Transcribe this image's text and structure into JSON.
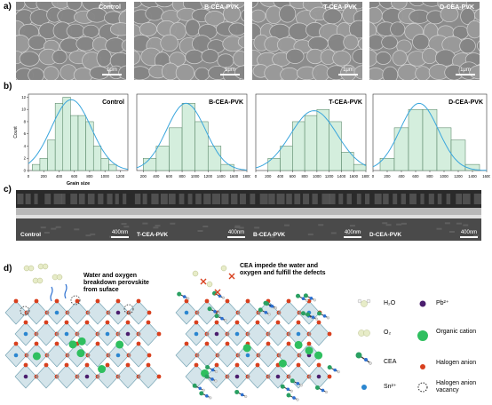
{
  "panels": {
    "a": "a)",
    "b": "b)",
    "c": "c)",
    "d": "d)"
  },
  "sem": [
    {
      "label": "Control",
      "scale": "1μm"
    },
    {
      "label": "B-CEA-PVK",
      "scale": "1μm"
    },
    {
      "label": "T-CEA-PVK",
      "scale": "1μm"
    },
    {
      "label": "D-CEA-PVK",
      "scale": "1μm"
    }
  ],
  "chart_data": [
    {
      "type": "bar",
      "title": "Control",
      "xlabel": "Grain size",
      "ylabel": "Count",
      "x": [
        100,
        200,
        300,
        400,
        500,
        600,
        700,
        800,
        900,
        1000,
        1100
      ],
      "values": [
        1,
        2,
        5,
        11,
        12,
        9,
        9,
        8,
        4,
        2,
        1
      ],
      "xticks": [
        "0",
        "200",
        "400",
        "600",
        "800",
        "1000",
        "1200"
      ],
      "yticks": [
        "0",
        "2",
        "4",
        "6",
        "8",
        "10",
        "12"
      ],
      "xlim": [
        0,
        1300
      ],
      "ylim": [
        0,
        12.5
      ],
      "fit": "gaussian",
      "fit_mu": 560,
      "fit_sigma": 260,
      "fit_peak": 11.6
    },
    {
      "type": "bar",
      "title": "B-CEA-PVK",
      "x": [
        300,
        500,
        700,
        900,
        1100,
        1300,
        1500
      ],
      "values": [
        2,
        4,
        7,
        11,
        8,
        4,
        1
      ],
      "xticks": [
        "200",
        "400",
        "600",
        "800",
        "1000",
        "1200",
        "1400",
        "1600",
        "1800"
      ],
      "xlim": [
        100,
        1800
      ],
      "ylim": [
        0,
        12.5
      ],
      "fit": "gaussian",
      "fit_mu": 860,
      "fit_sigma": 300,
      "fit_peak": 11
    },
    {
      "type": "bar",
      "title": "T-CEA-PVK",
      "x": [
        300,
        500,
        700,
        900,
        1100,
        1300,
        1500,
        1700
      ],
      "values": [
        2,
        4,
        8,
        9,
        10,
        8,
        3,
        1
      ],
      "xticks": [
        "0",
        "200",
        "400",
        "600",
        "800",
        "1000",
        "1200",
        "1400",
        "1600",
        "1800"
      ],
      "xlim": [
        0,
        1800
      ],
      "ylim": [
        0,
        12.5
      ],
      "fit": "gaussian",
      "fit_mu": 950,
      "fit_sigma": 380,
      "fit_peak": 9.8
    },
    {
      "type": "bar",
      "title": "D-CEA-PVK",
      "x": [
        200,
        400,
        600,
        800,
        1000,
        1200,
        1400
      ],
      "values": [
        2,
        7,
        10,
        10,
        7,
        5,
        1
      ],
      "xticks": [
        "0",
        "200",
        "400",
        "600",
        "800",
        "1000",
        "1200",
        "1400",
        "1600"
      ],
      "xlim": [
        0,
        1600
      ],
      "ylim": [
        0,
        12.5
      ],
      "fit": "gaussian",
      "fit_mu": 650,
      "fit_sigma": 270,
      "fit_peak": 11
    }
  ],
  "cross_sections": [
    {
      "label": "Control",
      "scale": "400nm"
    },
    {
      "label": "T-CEA-PVK",
      "scale": "400nm"
    },
    {
      "label": "B-CEA-PVK",
      "scale": "400nm"
    },
    {
      "label": "D-CEA-PVK",
      "scale": "400nm"
    }
  ],
  "schematic": {
    "left_caption": "Water and oxygen breakdown perovskite from suface",
    "right_caption": "CEA impede the water and oxygen and fulfill the defects"
  },
  "legend": {
    "h2o": "H₂O",
    "pb": "Pb²⁺",
    "o2": "O₂",
    "organic": "Organic cation",
    "cea": "CEA",
    "halogen": "Halogen anion",
    "sn": "Sn²⁺",
    "vacancy": "Halogen anion vacancy"
  },
  "colors": {
    "bar_fill": "#d4eedd",
    "bar_edge": "#4a7a5a",
    "fit": "#3aa6dd",
    "organic": "#2fbf5f",
    "halogen": "#d8401e",
    "sn": "#2b86d0",
    "pb": "#4b1e6e",
    "octa": "#9fc3d1"
  }
}
